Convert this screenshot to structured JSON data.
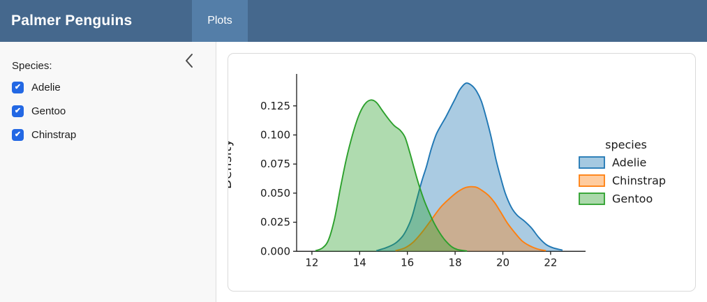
{
  "header": {
    "title": "Palmer Penguins",
    "tabs": [
      {
        "label": "Plots",
        "active": true
      }
    ],
    "bg_color": "#45688d",
    "active_tab_color": "#547ea8"
  },
  "sidebar": {
    "label": "Species:",
    "checkboxes": [
      {
        "label": "Adelie",
        "checked": true
      },
      {
        "label": "Gentoo",
        "checked": true
      },
      {
        "label": "Chinstrap",
        "checked": true
      }
    ],
    "checkbox_color": "#2368e4",
    "collapse_icon": "chevron-left-icon"
  },
  "chart_data": {
    "type": "area",
    "subtype": "kde-density",
    "title": "",
    "xlabel": "",
    "ylabel": "Density",
    "x_ticks": [
      12,
      14,
      16,
      18,
      20,
      22
    ],
    "y_ticks": [
      0.0,
      0.025,
      0.05,
      0.075,
      0.1,
      0.125
    ],
    "xlim": [
      11.4,
      23.5
    ],
    "ylim": [
      0,
      0.153
    ],
    "grid": false,
    "legend": {
      "title": "species",
      "position": "right",
      "entries": [
        "Adelie",
        "Chinstrap",
        "Gentoo"
      ]
    },
    "series": [
      {
        "name": "Adelie",
        "color": "#1f77b4",
        "points": [
          [
            14.7,
            0.0005
          ],
          [
            15.1,
            0.003
          ],
          [
            15.5,
            0.007
          ],
          [
            15.8,
            0.013
          ],
          [
            16.0,
            0.02
          ],
          [
            16.2,
            0.03
          ],
          [
            16.4,
            0.045
          ],
          [
            16.6,
            0.06
          ],
          [
            16.8,
            0.073
          ],
          [
            17.0,
            0.088
          ],
          [
            17.2,
            0.1
          ],
          [
            17.4,
            0.108
          ],
          [
            17.6,
            0.115
          ],
          [
            17.8,
            0.123
          ],
          [
            18.0,
            0.131
          ],
          [
            18.2,
            0.139
          ],
          [
            18.45,
            0.1445
          ],
          [
            18.7,
            0.1425
          ],
          [
            18.9,
            0.1375
          ],
          [
            19.1,
            0.129
          ],
          [
            19.3,
            0.115
          ],
          [
            19.5,
            0.099
          ],
          [
            19.7,
            0.08
          ],
          [
            19.9,
            0.064
          ],
          [
            20.1,
            0.05
          ],
          [
            20.35,
            0.038
          ],
          [
            20.6,
            0.031
          ],
          [
            20.9,
            0.026
          ],
          [
            21.2,
            0.02
          ],
          [
            21.5,
            0.012
          ],
          [
            21.8,
            0.006
          ],
          [
            22.1,
            0.003
          ],
          [
            22.5,
            0.001
          ]
        ]
      },
      {
        "name": "Chinstrap",
        "color": "#ff7f0e",
        "points": [
          [
            15.5,
            0.0005
          ],
          [
            15.9,
            0.003
          ],
          [
            16.25,
            0.008
          ],
          [
            16.6,
            0.016
          ],
          [
            17.0,
            0.027
          ],
          [
            17.4,
            0.038
          ],
          [
            17.8,
            0.046
          ],
          [
            18.1,
            0.051
          ],
          [
            18.4,
            0.0545
          ],
          [
            18.65,
            0.0555
          ],
          [
            18.9,
            0.055
          ],
          [
            19.15,
            0.052
          ],
          [
            19.4,
            0.048
          ],
          [
            19.65,
            0.042
          ],
          [
            19.9,
            0.034
          ],
          [
            20.2,
            0.024
          ],
          [
            20.5,
            0.016
          ],
          [
            20.8,
            0.009
          ],
          [
            21.1,
            0.005
          ],
          [
            21.45,
            0.002
          ],
          [
            21.8,
            0.0005
          ]
        ]
      },
      {
        "name": "Gentoo",
        "color": "#2ca02c",
        "points": [
          [
            12.15,
            0.0005
          ],
          [
            12.45,
            0.003
          ],
          [
            12.7,
            0.01
          ],
          [
            12.95,
            0.028
          ],
          [
            13.2,
            0.055
          ],
          [
            13.45,
            0.08
          ],
          [
            13.7,
            0.1
          ],
          [
            13.95,
            0.116
          ],
          [
            14.2,
            0.126
          ],
          [
            14.45,
            0.13
          ],
          [
            14.7,
            0.128
          ],
          [
            14.95,
            0.121
          ],
          [
            15.2,
            0.114
          ],
          [
            15.45,
            0.108
          ],
          [
            15.7,
            0.104
          ],
          [
            15.9,
            0.098
          ],
          [
            16.1,
            0.085
          ],
          [
            16.3,
            0.07
          ],
          [
            16.5,
            0.056
          ],
          [
            16.7,
            0.044
          ],
          [
            16.9,
            0.034
          ],
          [
            17.1,
            0.025
          ],
          [
            17.35,
            0.016
          ],
          [
            17.6,
            0.009
          ],
          [
            17.85,
            0.004
          ],
          [
            18.1,
            0.0015
          ],
          [
            18.5,
            0.0002
          ]
        ]
      }
    ],
    "fill_opacity": 0.38
  }
}
